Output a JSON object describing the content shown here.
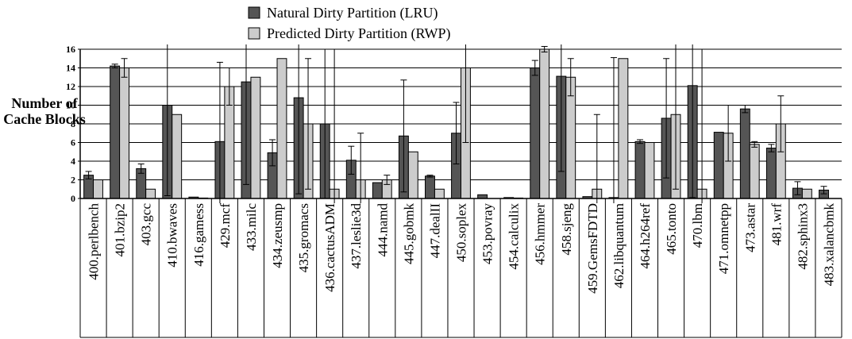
{
  "chart_data": {
    "type": "bar",
    "ylabel": [
      "Number of",
      "Cache Blocks"
    ],
    "categories": [
      "400.perlbench",
      "401.bzip2",
      "403.gcc",
      "410.bwaves",
      "416.gamess",
      "429.mcf",
      "433.milc",
      "434.zeusmp",
      "435.gromacs",
      "436.cactusADM",
      "437.leslie3d",
      "444.namd",
      "445.gobmk",
      "447.dealII",
      "450.soplex",
      "453.povray",
      "454.calculix",
      "456.hmmer",
      "458.sjeng",
      "459.GemsFDTD",
      "462.libquantum",
      "464.h264ref",
      "465.tonto",
      "470.lbm",
      "471.omnetpp",
      "473.astar",
      "481.wrf",
      "482.sphinx3",
      "483.xalancbmk"
    ],
    "series": [
      {
        "name": "Natural Dirty Partition (LRU)",
        "color": "#555555",
        "values": [
          2.5,
          14.2,
          3.2,
          10,
          0.15,
          6.1,
          12.5,
          4.9,
          10.8,
          8,
          4.1,
          1.7,
          6.7,
          2.4,
          7,
          0.4,
          0.1,
          14,
          13.1,
          0.2,
          0.1,
          6.1,
          8.6,
          12.1,
          7.1,
          9.6,
          5.4,
          1.1,
          0.9
        ],
        "errors": [
          0.4,
          0.2,
          0.5,
          9.7,
          0,
          8.5,
          11,
          1.4,
          10.3,
          8,
          1.5,
          0,
          6,
          0.1,
          3.3,
          0,
          0,
          0.8,
          10.2,
          0,
          15,
          0.2,
          6.4,
          12,
          0,
          0.4,
          0.4,
          0.7,
          0.4
        ]
      },
      {
        "name": "Predicted Dirty Partition (RWP)",
        "color": "#cccccc",
        "values": [
          2,
          14,
          1,
          9,
          0.05,
          12,
          13,
          15,
          8,
          1,
          2,
          2,
          5,
          1,
          14,
          0,
          0.05,
          16,
          13,
          1,
          15,
          6,
          9,
          1,
          7,
          5.8,
          8,
          1,
          0
        ],
        "errors": [
          0,
          1,
          0,
          0,
          0,
          2,
          0,
          0,
          7,
          15,
          5,
          0.5,
          0,
          0,
          8,
          0,
          0,
          0.3,
          2,
          8,
          0,
          0,
          8,
          15,
          3,
          0.3,
          3,
          0,
          0
        ]
      }
    ],
    "ylim": [
      0,
      16
    ],
    "yticks": [
      0,
      2,
      4,
      6,
      8,
      10,
      12,
      14,
      16
    ],
    "grid": true
  }
}
